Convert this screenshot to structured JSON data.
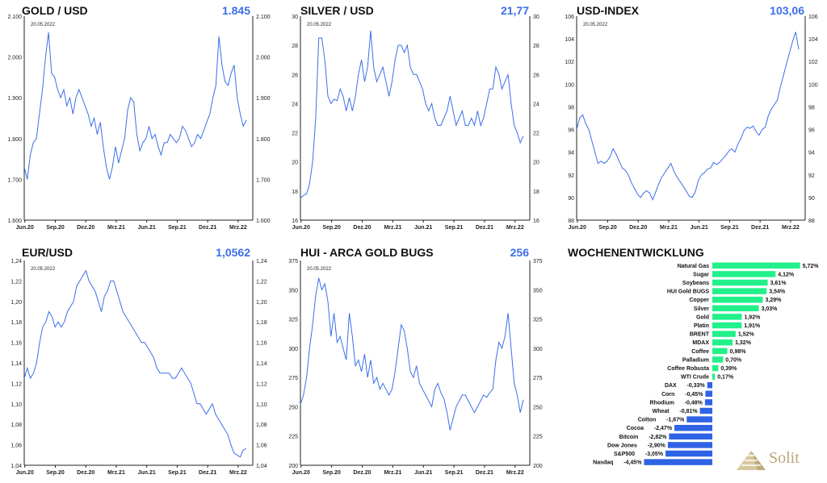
{
  "colors": {
    "line": "#3b6fe8",
    "value": "#3b6fe8",
    "positive": "#22f08a",
    "negative": "#2f63e6"
  },
  "chart_data": [
    {
      "type": "line",
      "title": "GOLD / USD",
      "value": "1.845",
      "date_label": "20.05.2022",
      "x_ticks": [
        "Jun.20",
        "Sep.20",
        "Dez.20",
        "Mrz.21",
        "Jun.21",
        "Sep.21",
        "Dez.21",
        "Mrz.22"
      ],
      "y_ticks": [
        "1.600",
        "1.700",
        "1.800",
        "1.900",
        "2.000",
        "2.100"
      ],
      "ylim": [
        1600,
        2100
      ],
      "values": [
        1730,
        1700,
        1760,
        1790,
        1800,
        1860,
        1920,
        2000,
        2060,
        1960,
        1950,
        1920,
        1900,
        1920,
        1880,
        1900,
        1860,
        1900,
        1920,
        1900,
        1880,
        1860,
        1830,
        1850,
        1810,
        1840,
        1780,
        1730,
        1700,
        1730,
        1780,
        1740,
        1770,
        1800,
        1870,
        1900,
        1890,
        1810,
        1770,
        1790,
        1800,
        1830,
        1800,
        1810,
        1780,
        1760,
        1790,
        1790,
        1810,
        1800,
        1790,
        1800,
        1830,
        1820,
        1800,
        1780,
        1790,
        1810,
        1800,
        1820,
        1840,
        1860,
        1900,
        1930,
        2050,
        1980,
        1940,
        1930,
        1960,
        1980,
        1900,
        1860,
        1830,
        1845
      ]
    },
    {
      "type": "line",
      "title": "SILVER / USD",
      "value": "21,77",
      "date_label": "20.05.2022",
      "x_ticks": [
        "Jun.20",
        "Sep.20",
        "Dez.20",
        "Mrz.21",
        "Jun.21",
        "Sep.21",
        "Dez.21",
        "Mrz.22"
      ],
      "y_ticks": [
        "16",
        "18",
        "20",
        "22",
        "24",
        "26",
        "28",
        "30"
      ],
      "ylim": [
        16,
        30
      ],
      "values": [
        17.5,
        17.7,
        17.8,
        18.5,
        20,
        23,
        28.5,
        28.5,
        27,
        24.5,
        24,
        24.3,
        24.2,
        25,
        24.5,
        23.5,
        24.4,
        23.5,
        24.5,
        26,
        27,
        25.5,
        26.5,
        29,
        26.5,
        25.5,
        26,
        26.5,
        25.5,
        24.5,
        25.5,
        27,
        28,
        28,
        27.5,
        28,
        26.5,
        26,
        26,
        25.5,
        25,
        24,
        23.5,
        24,
        23,
        22.5,
        22.5,
        23,
        23.5,
        24.5,
        23.5,
        22.5,
        23,
        23.5,
        22.5,
        22.5,
        23,
        22.5,
        23.5,
        22.5,
        23,
        24,
        25,
        25,
        26.5,
        26,
        25,
        25.5,
        26,
        24,
        22.5,
        22,
        21.3,
        21.77
      ]
    },
    {
      "type": "line",
      "title": "USD-INDEX",
      "value": "103,06",
      "date_label": "20.05.2022",
      "x_ticks": [
        "Jun.20",
        "Sep.20",
        "Dez.20",
        "Mrz.21",
        "Jun.21",
        "Sep.21",
        "Dez.21",
        "Mrz.22"
      ],
      "y_ticks": [
        "88",
        "90",
        "92",
        "94",
        "96",
        "98",
        "100",
        "102",
        "104",
        "106"
      ],
      "ylim": [
        88,
        106
      ],
      "values": [
        96,
        97,
        97.3,
        96.5,
        96,
        95,
        94,
        93,
        93.2,
        93,
        93.2,
        93.6,
        94.3,
        93.8,
        93.2,
        92.6,
        92.4,
        92,
        91.3,
        90.8,
        90.3,
        90,
        90.4,
        90.6,
        90.4,
        89.8,
        90.5,
        91.2,
        91.8,
        92.2,
        92.6,
        93,
        92.3,
        91.8,
        91.4,
        91,
        90.6,
        90.1,
        90,
        90.5,
        91.5,
        92,
        92.2,
        92.5,
        92.6,
        93.1,
        92.9,
        93.1,
        93.4,
        93.7,
        94.1,
        94.3,
        94,
        94.7,
        95.2,
        95.9,
        96.2,
        96.1,
        96.3,
        95.8,
        95.5,
        96,
        96.2,
        97.2,
        97.8,
        98.2,
        98.6,
        99.8,
        100.8,
        101.8,
        102.8,
        103.8,
        104.6,
        103.06
      ]
    },
    {
      "type": "line",
      "title": "EUR/USD",
      "value": "1,0562",
      "date_label": "20.05.2022",
      "x_ticks": [
        "Jun.20",
        "Sep.20",
        "Dez.20",
        "Mrz.21",
        "Jun.21",
        "Sep.21",
        "Dez.21",
        "Mrz.22"
      ],
      "y_ticks": [
        "1,04",
        "1,06",
        "1,08",
        "1,10",
        "1,12",
        "1,14",
        "1,16",
        "1,18",
        "1,20",
        "1,22",
        "1,24"
      ],
      "ylim": [
        1.04,
        1.24
      ],
      "values": [
        1.125,
        1.135,
        1.125,
        1.13,
        1.14,
        1.16,
        1.175,
        1.18,
        1.19,
        1.185,
        1.175,
        1.18,
        1.175,
        1.18,
        1.19,
        1.195,
        1.2,
        1.215,
        1.22,
        1.225,
        1.23,
        1.22,
        1.215,
        1.21,
        1.2,
        1.19,
        1.205,
        1.21,
        1.22,
        1.22,
        1.21,
        1.2,
        1.19,
        1.185,
        1.18,
        1.175,
        1.17,
        1.165,
        1.16,
        1.16,
        1.155,
        1.15,
        1.145,
        1.135,
        1.13,
        1.13,
        1.13,
        1.13,
        1.125,
        1.125,
        1.13,
        1.135,
        1.13,
        1.125,
        1.12,
        1.11,
        1.1,
        1.1,
        1.095,
        1.09,
        1.095,
        1.1,
        1.09,
        1.085,
        1.08,
        1.075,
        1.07,
        1.06,
        1.052,
        1.05,
        1.048,
        1.055,
        1.0562
      ]
    },
    {
      "type": "line",
      "title": "HUI - ARCA GOLD BUGS",
      "value": "256",
      "date_label": "20.05.2022",
      "x_ticks": [
        "Jun.20",
        "Sep.20",
        "Dez.20",
        "Mrz.21",
        "Jun.21",
        "Sep.21",
        "Dez.21",
        "Mrz.22"
      ],
      "y_ticks": [
        "200",
        "225",
        "250",
        "275",
        "300",
        "325",
        "350",
        "375"
      ],
      "ylim": [
        200,
        375
      ],
      "values": [
        252,
        260,
        275,
        300,
        320,
        345,
        360,
        350,
        355,
        340,
        310,
        330,
        305,
        310,
        300,
        290,
        330,
        310,
        285,
        290,
        280,
        295,
        275,
        290,
        270,
        275,
        265,
        270,
        265,
        260,
        265,
        280,
        300,
        320,
        315,
        300,
        280,
        275,
        285,
        270,
        265,
        260,
        255,
        250,
        265,
        270,
        262,
        257,
        245,
        230,
        240,
        250,
        255,
        260,
        260,
        255,
        250,
        245,
        250,
        255,
        260,
        258,
        262,
        265,
        290,
        305,
        300,
        310,
        330,
        300,
        270,
        260,
        245,
        256
      ]
    },
    {
      "type": "bar",
      "title": "WOCHENENTWICKLUNG",
      "orientation": "horizontal",
      "categories": [
        "Natural Gas",
        "Sugar",
        "Soybeans",
        "HUI Gold BUGS",
        "Copper",
        "Silver",
        "Gold",
        "Platin",
        "BRENT",
        "MDAX",
        "Coffee",
        "Palladium",
        "Coffee Robusta",
        "WTI Crude",
        "DAX",
        "Corn",
        "Rhodium",
        "Wheat",
        "Cotton",
        "Cocoa",
        "Bitcoin",
        "Dow Jones",
        "S&P500",
        "Nasdaq"
      ],
      "values": [
        5.72,
        4.12,
        3.61,
        3.54,
        3.29,
        3.03,
        1.92,
        1.91,
        1.52,
        1.32,
        0.98,
        0.7,
        0.39,
        0.17,
        -0.33,
        -0.45,
        -0.48,
        -0.81,
        -1.67,
        -2.47,
        -2.82,
        -2.9,
        -3.05,
        -4.45
      ],
      "labels": [
        "5,72%",
        "4,12%",
        "3,61%",
        "3,54%",
        "3,29%",
        "3,03%",
        "1,92%",
        "1,91%",
        "1,52%",
        "1,32%",
        "0,98%",
        "0,70%",
        "0,39%",
        "0,17%",
        "-0,33%",
        "-0,45%",
        "-0,48%",
        "-0,81%",
        "-1,67%",
        "-2,47%",
        "-2,82%",
        "-2,90%",
        "-3,05%",
        "-4,45%"
      ]
    }
  ],
  "logo": {
    "text": "Solit"
  }
}
